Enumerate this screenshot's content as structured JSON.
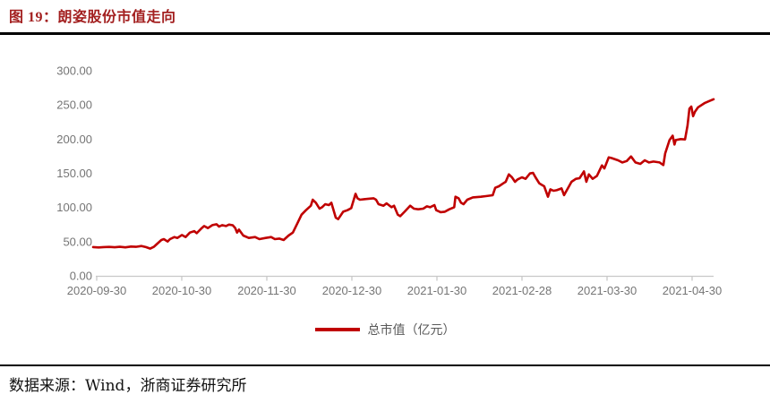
{
  "header": {
    "title": "图 19：朗姿股份市值走向"
  },
  "legend": {
    "label": "总市值（亿元）"
  },
  "footer": {
    "source": "数据来源：Wind，浙商证券研究所"
  },
  "colors": {
    "title_red": "#a32020",
    "line_red": "#c00000",
    "axis_line": "#c8c8c8",
    "axis_text": "#757575",
    "divider_black": "#000000"
  },
  "chart_data": {
    "type": "line",
    "title": "朗姿股份市值走向",
    "series_name": "总市值（亿元）",
    "xlabel": "",
    "ylabel": "",
    "grid": false,
    "legend_position": "bottom",
    "ylim": [
      0,
      300
    ],
    "y_ticks": [
      0,
      50,
      100,
      150,
      200,
      250,
      300
    ],
    "y_tick_labels": [
      "0.00",
      "50.00",
      "100.00",
      "150.00",
      "200.00",
      "250.00",
      "300.00"
    ],
    "x_tick_labels": [
      "2020-09-30",
      "2020-10-30",
      "2020-11-30",
      "2020-12-30",
      "2021-01-30",
      "2021-02-28",
      "2021-03-30",
      "2021-04-30"
    ],
    "points_note": "pairs of [time position 0..1 across x-range, total market cap in 100M CNY]",
    "points": [
      [
        0.0,
        42.0
      ],
      [
        0.009,
        41.5
      ],
      [
        0.017,
        42.0
      ],
      [
        0.026,
        42.3
      ],
      [
        0.035,
        41.8
      ],
      [
        0.043,
        42.5
      ],
      [
        0.052,
        41.6
      ],
      [
        0.061,
        42.8
      ],
      [
        0.069,
        42.5
      ],
      [
        0.078,
        43.6
      ],
      [
        0.085,
        42.0
      ],
      [
        0.092,
        39.8
      ],
      [
        0.098,
        42.5
      ],
      [
        0.102,
        45.8
      ],
      [
        0.11,
        52.4
      ],
      [
        0.114,
        53.7
      ],
      [
        0.12,
        50.2
      ],
      [
        0.124,
        53.7
      ],
      [
        0.131,
        56.7
      ],
      [
        0.136,
        55.4
      ],
      [
        0.143,
        59.7
      ],
      [
        0.149,
        56.7
      ],
      [
        0.156,
        63.3
      ],
      [
        0.163,
        65.4
      ],
      [
        0.167,
        62.3
      ],
      [
        0.175,
        69.8
      ],
      [
        0.179,
        72.9
      ],
      [
        0.185,
        69.8
      ],
      [
        0.192,
        74.2
      ],
      [
        0.199,
        75.5
      ],
      [
        0.203,
        72.0
      ],
      [
        0.208,
        74.2
      ],
      [
        0.214,
        72.9
      ],
      [
        0.219,
        75.0
      ],
      [
        0.225,
        74.0
      ],
      [
        0.229,
        70.0
      ],
      [
        0.232,
        63.3
      ],
      [
        0.235,
        67.6
      ],
      [
        0.242,
        59.0
      ],
      [
        0.251,
        55.4
      ],
      [
        0.261,
        56.7
      ],
      [
        0.268,
        53.7
      ],
      [
        0.278,
        55.4
      ],
      [
        0.287,
        56.7
      ],
      [
        0.293,
        53.7
      ],
      [
        0.3,
        54.5
      ],
      [
        0.307,
        52.4
      ],
      [
        0.315,
        59.0
      ],
      [
        0.322,
        63.3
      ],
      [
        0.329,
        76.4
      ],
      [
        0.336,
        89.5
      ],
      [
        0.343,
        96.0
      ],
      [
        0.351,
        102.6
      ],
      [
        0.354,
        111.3
      ],
      [
        0.359,
        106.9
      ],
      [
        0.365,
        98.2
      ],
      [
        0.369,
        100.4
      ],
      [
        0.374,
        104.8
      ],
      [
        0.38,
        103.5
      ],
      [
        0.384,
        106.9
      ],
      [
        0.391,
        85.1
      ],
      [
        0.395,
        82.9
      ],
      [
        0.403,
        93.8
      ],
      [
        0.41,
        96.0
      ],
      [
        0.416,
        99.0
      ],
      [
        0.423,
        120.0
      ],
      [
        0.426,
        113.4
      ],
      [
        0.43,
        111.3
      ],
      [
        0.437,
        112.1
      ],
      [
        0.444,
        112.8
      ],
      [
        0.452,
        113.4
      ],
      [
        0.456,
        111.3
      ],
      [
        0.46,
        104.8
      ],
      [
        0.468,
        102.6
      ],
      [
        0.473,
        106.0
      ],
      [
        0.481,
        100.4
      ],
      [
        0.485,
        102.6
      ],
      [
        0.491,
        89.5
      ],
      [
        0.495,
        87.3
      ],
      [
        0.502,
        93.8
      ],
      [
        0.511,
        102.6
      ],
      [
        0.517,
        98.2
      ],
      [
        0.524,
        97.3
      ],
      [
        0.532,
        98.2
      ],
      [
        0.538,
        101.7
      ],
      [
        0.543,
        100.4
      ],
      [
        0.55,
        103.5
      ],
      [
        0.553,
        96.0
      ],
      [
        0.56,
        93.1
      ],
      [
        0.567,
        93.8
      ],
      [
        0.574,
        97.3
      ],
      [
        0.582,
        100.4
      ],
      [
        0.584,
        115.7
      ],
      [
        0.589,
        113.4
      ],
      [
        0.593,
        106.9
      ],
      [
        0.597,
        104.8
      ],
      [
        0.603,
        111.3
      ],
      [
        0.612,
        114.8
      ],
      [
        0.625,
        115.7
      ],
      [
        0.633,
        116.6
      ],
      [
        0.644,
        117.9
      ],
      [
        0.648,
        128.8
      ],
      [
        0.654,
        131.0
      ],
      [
        0.661,
        135.3
      ],
      [
        0.665,
        137.5
      ],
      [
        0.67,
        148.4
      ],
      [
        0.675,
        144.1
      ],
      [
        0.68,
        137.5
      ],
      [
        0.684,
        141.0
      ],
      [
        0.691,
        144.1
      ],
      [
        0.697,
        141.9
      ],
      [
        0.704,
        149.7
      ],
      [
        0.709,
        150.6
      ],
      [
        0.713,
        144.1
      ],
      [
        0.719,
        135.3
      ],
      [
        0.723,
        133.1
      ],
      [
        0.727,
        131.0
      ],
      [
        0.733,
        115.7
      ],
      [
        0.737,
        126.6
      ],
      [
        0.742,
        124.4
      ],
      [
        0.747,
        125.3
      ],
      [
        0.755,
        127.9
      ],
      [
        0.759,
        118.0
      ],
      [
        0.771,
        137.5
      ],
      [
        0.778,
        141.9
      ],
      [
        0.784,
        142.8
      ],
      [
        0.791,
        152.8
      ],
      [
        0.795,
        137.5
      ],
      [
        0.799,
        148.4
      ],
      [
        0.805,
        141.9
      ],
      [
        0.812,
        146.2
      ],
      [
        0.82,
        161.5
      ],
      [
        0.824,
        157.1
      ],
      [
        0.831,
        173.3
      ],
      [
        0.835,
        172.4
      ],
      [
        0.846,
        169.0
      ],
      [
        0.853,
        165.8
      ],
      [
        0.86,
        168.0
      ],
      [
        0.867,
        174.6
      ],
      [
        0.874,
        165.8
      ],
      [
        0.882,
        163.7
      ],
      [
        0.889,
        169.0
      ],
      [
        0.896,
        165.8
      ],
      [
        0.903,
        167.1
      ],
      [
        0.913,
        165.8
      ],
      [
        0.919,
        162.0
      ],
      [
        0.922,
        179.0
      ],
      [
        0.929,
        198.6
      ],
      [
        0.934,
        205.0
      ],
      [
        0.937,
        192.0
      ],
      [
        0.939,
        198.6
      ],
      [
        0.947,
        200.0
      ],
      [
        0.954,
        199.5
      ],
      [
        0.958,
        220.0
      ],
      [
        0.961,
        244.5
      ],
      [
        0.964,
        247.6
      ],
      [
        0.967,
        233.6
      ],
      [
        0.97,
        240.0
      ],
      [
        0.975,
        246.6
      ],
      [
        0.986,
        253.0
      ],
      [
        0.994,
        256.0
      ],
      [
        1.0,
        258.4
      ]
    ]
  }
}
